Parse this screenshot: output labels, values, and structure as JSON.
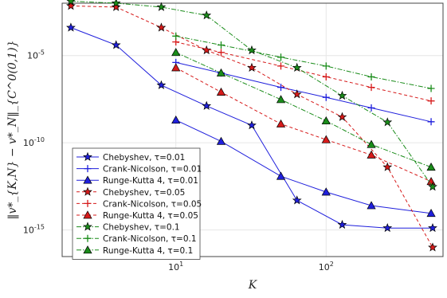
{
  "chart_data": {
    "type": "line",
    "title": "",
    "xlabel": "K",
    "ylabel": "‖v*_{K,N} − v*_N‖_{C^0(0,1)}",
    "xscale": "log",
    "yscale": "log",
    "xlim": [
      1.75,
      600
    ],
    "ylim": [
      3e-17,
      0.01
    ],
    "xticks": [
      {
        "value": 10,
        "base": "10",
        "exp": "1"
      },
      {
        "value": 100,
        "base": "10",
        "exp": "2"
      }
    ],
    "yticks": [
      {
        "value": 1e-15,
        "base": "10",
        "exp": "-15"
      },
      {
        "value": 1e-10,
        "base": "10",
        "exp": "-10"
      },
      {
        "value": 1e-05,
        "base": "10",
        "exp": "-5"
      }
    ],
    "grid": true,
    "legend_position": "bottom-left",
    "series": [
      {
        "name": "Chebyshev, τ=0.01",
        "color": "#1f1fdc",
        "dash": "solid",
        "marker": "star",
        "x": [
          2,
          4,
          8,
          16,
          32,
          64,
          128,
          256,
          512
        ],
        "y": [
          0.0004,
          4e-05,
          2e-07,
          1.3e-08,
          1e-09,
          5e-14,
          2e-15,
          1.3e-15,
          1.3e-15
        ]
      },
      {
        "name": "Crank-Nicolson, τ=0.01",
        "color": "#1f1fdc",
        "dash": "solid",
        "marker": "plus",
        "x": [
          10,
          20,
          50,
          100,
          200,
          500
        ],
        "y": [
          4e-06,
          1e-06,
          1.5e-07,
          4e-08,
          1e-08,
          1.6e-09
        ]
      },
      {
        "name": "Runge-Kutta 4, τ=0.01",
        "color": "#1f1fdc",
        "dash": "solid",
        "marker": "triangle",
        "x": [
          10,
          20,
          50,
          100,
          200,
          500
        ],
        "y": [
          2e-09,
          1.2e-10,
          1.2e-12,
          1.5e-13,
          2.5e-14,
          9e-15
        ]
      },
      {
        "name": "Chebyshev, τ=0.05",
        "color": "#d61a1a",
        "dash": "dash",
        "marker": "star",
        "x": [
          2,
          4,
          8,
          16,
          32,
          64,
          128,
          256,
          512
        ],
        "y": [
          0.007,
          0.006,
          0.0004,
          2e-05,
          2e-06,
          6e-08,
          3e-09,
          4e-12,
          1e-16
        ]
      },
      {
        "name": "Crank-Nicolson, τ=0.05",
        "color": "#d61a1a",
        "dash": "dash",
        "marker": "plus",
        "x": [
          10,
          20,
          50,
          100,
          200,
          500
        ],
        "y": [
          6e-05,
          1.5e-05,
          2.5e-06,
          6e-07,
          1.5e-07,
          2.5e-08
        ]
      },
      {
        "name": "Runge-Kutta 4, τ=0.05",
        "color": "#d61a1a",
        "dash": "dash",
        "marker": "triangle",
        "x": [
          10,
          20,
          50,
          100,
          200,
          500
        ],
        "y": [
          2e-06,
          8e-08,
          1.2e-09,
          1.5e-10,
          2e-11,
          6e-13
        ]
      },
      {
        "name": "Chebyshev, τ=0.1",
        "color": "#1a8c1a",
        "dash": "dashdot",
        "marker": "star",
        "x": [
          2,
          4,
          8,
          16,
          32,
          64,
          128,
          256,
          512
        ],
        "y": [
          0.013,
          0.01,
          0.006,
          0.002,
          2e-05,
          2e-06,
          5e-08,
          1.5e-09,
          3e-13
        ]
      },
      {
        "name": "Crank-Nicolson, τ=0.1",
        "color": "#1a8c1a",
        "dash": "dashdot",
        "marker": "plus",
        "x": [
          10,
          20,
          50,
          100,
          200,
          500
        ],
        "y": [
          0.00013,
          4e-05,
          8e-06,
          2.5e-06,
          6e-07,
          1.3e-07
        ]
      },
      {
        "name": "Runge-Kutta 4, τ=0.1",
        "color": "#1a8c1a",
        "dash": "dashdot",
        "marker": "triangle",
        "x": [
          10,
          20,
          50,
          100,
          200,
          500
        ],
        "y": [
          1.5e-05,
          1e-06,
          3e-08,
          1.8e-09,
          8e-11,
          4e-12
        ]
      }
    ]
  }
}
